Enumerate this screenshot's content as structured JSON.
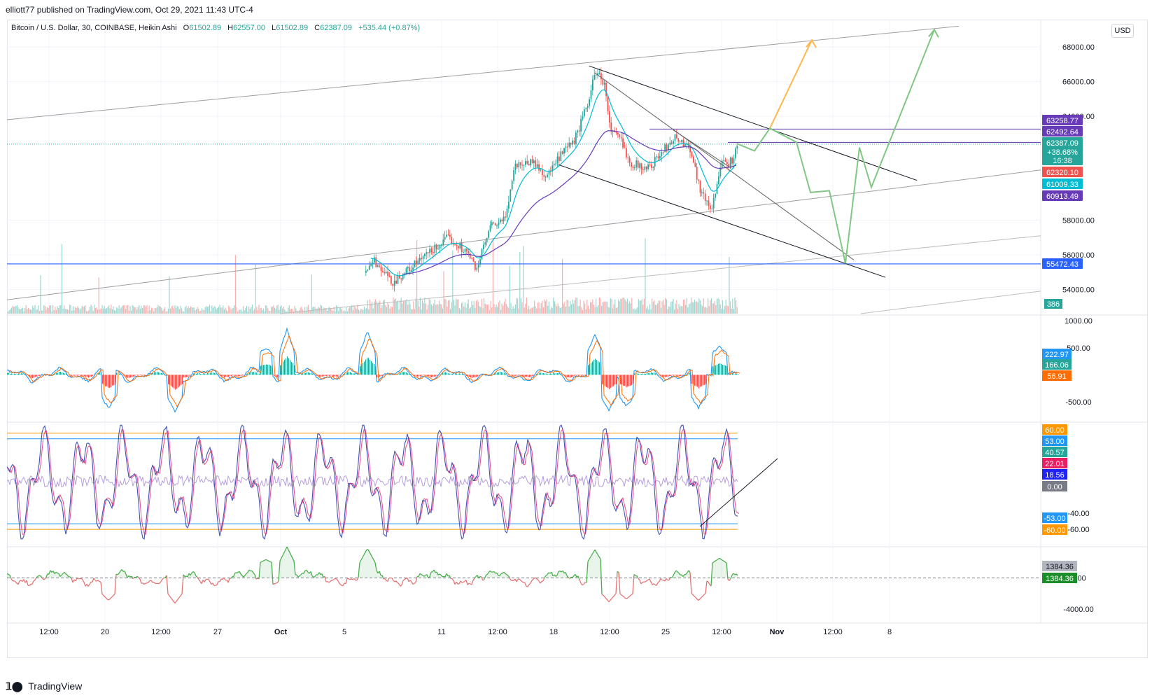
{
  "header": {
    "published_text": "elliott77 published on TradingView.com, Oct 29, 2021 11:43 UTC-4"
  },
  "legend": {
    "symbol": "Bitcoin / U.S. Dollar, 30, COINBASE, Heikin Ashi",
    "o_label": "O",
    "o_value": "61502.89",
    "h_label": "H",
    "h_value": "62557.00",
    "l_label": "L",
    "l_value": "61502.89",
    "c_label": "C",
    "c_value": "62387.09",
    "change": "+535.44 (+0.87%)"
  },
  "currency_button": "USD",
  "footer": {
    "logo_text": "TradingView"
  },
  "colors": {
    "up": "#26a69a",
    "down": "#ef5350",
    "ema_fast": "#00bcd4",
    "ema_slow": "#673ab7",
    "channel": "#9e9e9e",
    "hline": "#2962ff",
    "purple_line": "#5e35b1",
    "projection_orange": "#ffb74d",
    "projection_green": "#81c784"
  },
  "chart_data": [
    {
      "type": "candlestick",
      "name": "price",
      "y_ticks": [
        "68000.00",
        "66000.00",
        "64000.00",
        "58000.00",
        "56000.00",
        "54000.00"
      ],
      "y_tick_values": [
        68000,
        66000,
        64000,
        58000,
        56000,
        54000
      ],
      "ylim": [
        52600,
        69500
      ],
      "x_tick_labels": [
        "12:00",
        "20",
        "12:00",
        "27",
        "Oct",
        "5",
        "11",
        "12:00",
        "18",
        "12:00",
        "25",
        "12:00",
        "Nov",
        "12:00",
        "8"
      ],
      "price_badges": [
        {
          "value": "63258.77",
          "color": "#673ab7",
          "price": 63258.77
        },
        {
          "value": "62492.64",
          "color": "#673ab7",
          "price": 62492.64
        },
        {
          "value": "62387.09",
          "sub1": "+38.68%",
          "sub2": "16:38",
          "color": "#26a69a",
          "price": 62387.09
        },
        {
          "value": "62320.10",
          "color": "#ef5350",
          "price": 62320.1
        },
        {
          "value": "61009.33",
          "color": "#00bcd4",
          "price": 61009.33
        },
        {
          "value": "60913.49",
          "color": "#673ab7",
          "price": 60913.49
        },
        {
          "value": "55472.43",
          "color": "#2962ff",
          "price": 55472.43
        }
      ],
      "volume_badge": "386",
      "last_price": 62387.09,
      "horizontal_levels": [
        55472.43,
        63258.77,
        62492.64
      ]
    },
    {
      "type": "line",
      "name": "oscillator-1",
      "y_ticks": [
        "1000.00",
        "500.00",
        "-500.00"
      ],
      "y_tick_values": [
        1000,
        500,
        -500
      ],
      "ylim": [
        -850,
        1080
      ],
      "badges": [
        {
          "value": "222.97",
          "color": "#2196f3"
        },
        {
          "value": "166.06",
          "color": "#26a69a"
        },
        {
          "value": "56.91",
          "color": "#ff6d00"
        }
      ]
    },
    {
      "type": "line",
      "name": "oscillator-2",
      "y_ticks": [
        "-40.00",
        "-60.00"
      ],
      "y_tick_values": [
        -40,
        -60
      ],
      "ylim": [
        -80,
        72
      ],
      "levels": [
        60,
        53,
        -53,
        -60
      ],
      "badges": [
        {
          "value": "60.00",
          "color": "#ff9800"
        },
        {
          "value": "53.00",
          "color": "#2196f3"
        },
        {
          "value": "40.57",
          "color": "#26a69a"
        },
        {
          "value": "22.01",
          "color": "#e91e63"
        },
        {
          "value": "18.56",
          "color": "#1e22f5"
        },
        {
          "value": "0.00",
          "color": "#787b86"
        },
        {
          "value": "-53.00",
          "color": "#2196f3"
        },
        {
          "value": "-60.00",
          "color": "#ff9800"
        }
      ]
    },
    {
      "type": "area",
      "name": "oscillator-3",
      "y_ticks": [
        "0.00",
        "-4000.00"
      ],
      "y_tick_values": [
        0,
        -4000
      ],
      "ylim": [
        -5600,
        3800
      ],
      "badges": [
        {
          "value": "1384.36",
          "color": "#b2b5be",
          "text_color": "#131722"
        },
        {
          "value": "1384.36",
          "color": "#1b8e2a"
        }
      ]
    }
  ]
}
